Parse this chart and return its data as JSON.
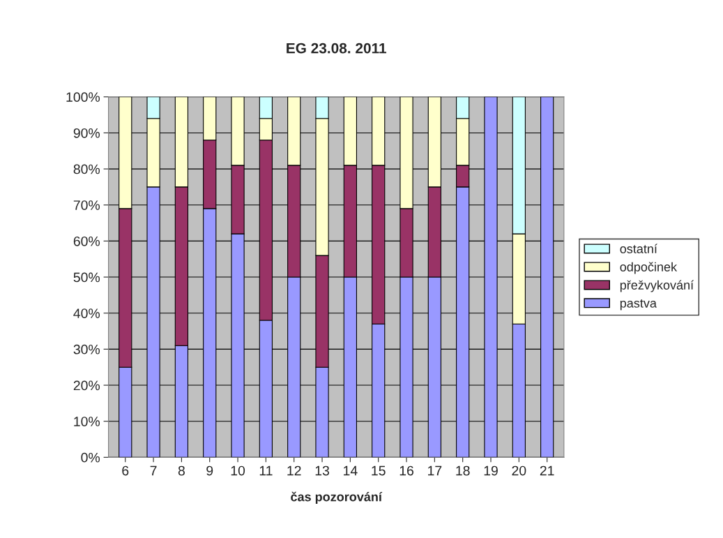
{
  "chart_data": {
    "type": "bar",
    "title": "EG 23.08. 2011",
    "xlabel": "čas pozorování",
    "stacked": true,
    "categories": [
      "6",
      "7",
      "8",
      "9",
      "10",
      "11",
      "12",
      "13",
      "14",
      "15",
      "16",
      "17",
      "18",
      "19",
      "20",
      "21"
    ],
    "series": [
      {
        "name": "pastva",
        "color": "#9999ff",
        "values": [
          25,
          75,
          31,
          69,
          62,
          38,
          50,
          25,
          50,
          37,
          50,
          50,
          75,
          100,
          37,
          100
        ]
      },
      {
        "name": "přežvykování",
        "color": "#993366",
        "values": [
          44,
          null,
          44,
          19,
          19,
          50,
          31,
          31,
          31,
          44,
          19,
          25,
          6,
          null,
          null,
          null
        ]
      },
      {
        "name": "odpočinek",
        "color": "#ffffcc",
        "values": [
          31,
          19,
          25,
          12,
          19,
          6,
          19,
          38,
          19,
          19,
          31,
          25,
          13,
          null,
          25,
          null
        ]
      },
      {
        "name": "ostatní",
        "color": "#ccffff",
        "values": [
          null,
          6,
          null,
          null,
          null,
          6,
          null,
          6,
          null,
          null,
          null,
          null,
          6,
          null,
          38,
          null
        ]
      }
    ],
    "ylim": [
      0,
      100
    ],
    "yticks": [
      {
        "value": 0,
        "label": "0%"
      },
      {
        "value": 10,
        "label": "10%"
      },
      {
        "value": 20,
        "label": "20%"
      },
      {
        "value": 30,
        "label": "30%"
      },
      {
        "value": 40,
        "label": "40%"
      },
      {
        "value": 50,
        "label": "50%"
      },
      {
        "value": 60,
        "label": "60%"
      },
      {
        "value": 70,
        "label": "70%"
      },
      {
        "value": 80,
        "label": "80%"
      },
      {
        "value": 90,
        "label": "90%"
      },
      {
        "value": 100,
        "label": "100%"
      }
    ],
    "grid": "y",
    "legend": "right"
  }
}
